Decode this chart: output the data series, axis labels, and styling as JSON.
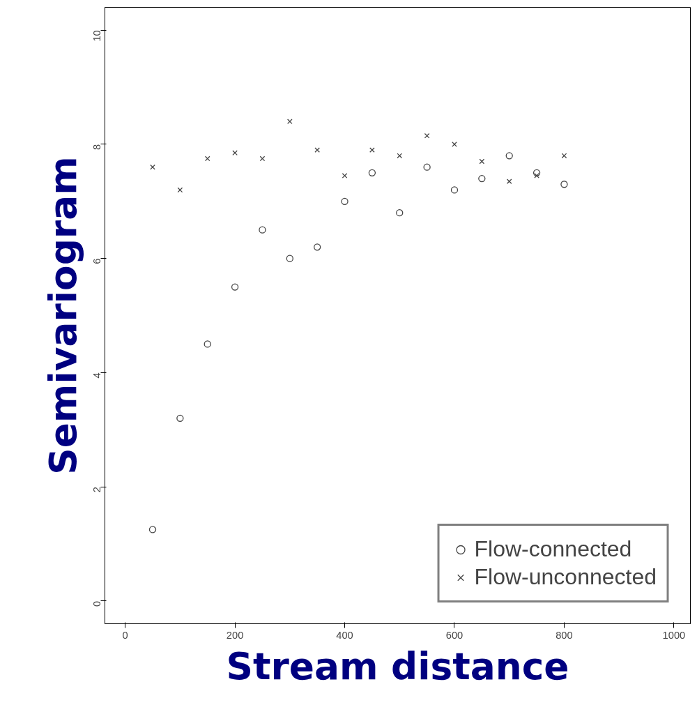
{
  "chart_data": {
    "type": "scatter",
    "xlabel": "Stream distance",
    "ylabel": "Semivariogram",
    "x": [
      50,
      100,
      150,
      200,
      250,
      300,
      350,
      400,
      450,
      500,
      550,
      600,
      650,
      700,
      750,
      800
    ],
    "series": [
      {
        "name": "Flow-connected",
        "color": "#444444",
        "marker": "circle",
        "values": [
          1.25,
          3.2,
          4.5,
          5.5,
          6.5,
          6.0,
          6.2,
          7.0,
          7.5,
          6.8,
          7.6,
          7.2,
          7.4,
          7.8,
          7.5,
          7.3
        ]
      },
      {
        "name": "Flow-unconnected",
        "color": "#444444",
        "marker": "cross",
        "values": [
          7.6,
          7.2,
          7.75,
          7.85,
          7.75,
          8.4,
          7.9,
          7.45,
          7.9,
          7.8,
          8.15,
          8.0,
          7.7,
          7.35,
          7.45,
          7.8
        ]
      }
    ],
    "xlim": [
      -37,
      1030
    ],
    "ylim": [
      -0.4,
      10.4
    ],
    "xticks": [
      0,
      200,
      400,
      600,
      800,
      1000
    ],
    "yticks": [
      0,
      2,
      4,
      6,
      8,
      10
    ],
    "grid": false,
    "legend": "bottom right"
  }
}
